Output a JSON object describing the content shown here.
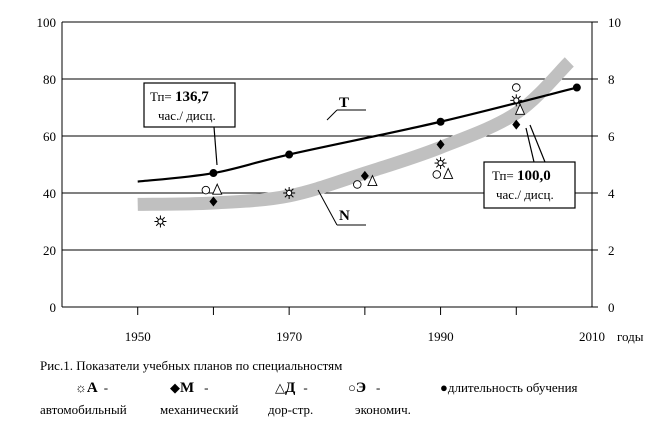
{
  "chart_data": {
    "type": "line",
    "xlabel": "годы",
    "x_ticks": [
      "1950",
      "1970",
      "1990",
      "2010"
    ],
    "xlim": [
      1940,
      2010
    ],
    "y_left_ticks": [
      "0",
      "20",
      "40",
      "60",
      "80",
      "100"
    ],
    "ylim_left": [
      0,
      100
    ],
    "y_right_ticks": [
      "0",
      "2",
      "4",
      "6",
      "8",
      "10"
    ],
    "ylim_right": [
      0,
      10
    ],
    "series": [
      {
        "name": "T",
        "type": "line",
        "x": [
          1950,
          1960,
          1970,
          1990,
          2008
        ],
        "y": [
          44,
          47,
          53.5,
          65,
          77
        ]
      },
      {
        "name": "N",
        "type": "band",
        "x": [
          1950,
          1960,
          1970,
          1980,
          1990,
          2000,
          2007
        ],
        "y": [
          36,
          36.5,
          39,
          47,
          56,
          68,
          86
        ]
      },
      {
        "name": "А",
        "marker": "sun",
        "x": [
          1953,
          1970,
          1990,
          2000
        ],
        "y": [
          30,
          40,
          50.5,
          72.5
        ]
      },
      {
        "name": "М",
        "marker": "diamond",
        "x": [
          1960,
          1980,
          1990,
          2000
        ],
        "y": [
          37,
          46,
          57,
          64
        ]
      },
      {
        "name": "Д",
        "marker": "triangle",
        "x": [
          1960.5,
          1981,
          1991,
          2000.5
        ],
        "y": [
          41,
          44,
          46.5,
          69
        ]
      },
      {
        "name": "Э",
        "marker": "circle",
        "x": [
          1959,
          1979,
          1989.5,
          2000
        ],
        "y": [
          41,
          43,
          46.5,
          77
        ]
      },
      {
        "name": "длительность обучения",
        "marker": "dot",
        "x": [
          1960,
          1970,
          1990,
          2008
        ],
        "y": [
          47,
          53.5,
          65,
          77
        ]
      }
    ],
    "line_labels": {
      "T": "T",
      "N": "N"
    },
    "annotations": [
      {
        "prefix": "Тп= ",
        "value": "136,7",
        "unit": "час./ дисц."
      },
      {
        "prefix": "Тп= ",
        "value": "100,0",
        "unit": "час./ дисц."
      }
    ]
  },
  "caption": "Рис.1. Показатели учебных  планов по специальностям",
  "legend": [
    {
      "symbol": "☼",
      "letter": "А",
      "dash": "-",
      "desc": "автомобильный"
    },
    {
      "symbol": "◆",
      "letter": "М",
      "dash": "-",
      "desc": "механический"
    },
    {
      "symbol": "△",
      "letter": "Д",
      "dash": "-",
      "desc": "дор-стр."
    },
    {
      "symbol": "○",
      "letter": "Э",
      "dash": "-",
      "desc": "экономич."
    },
    {
      "symbol": "●",
      "letter": "",
      "dash": "",
      "desc": "длительность обучения"
    }
  ]
}
